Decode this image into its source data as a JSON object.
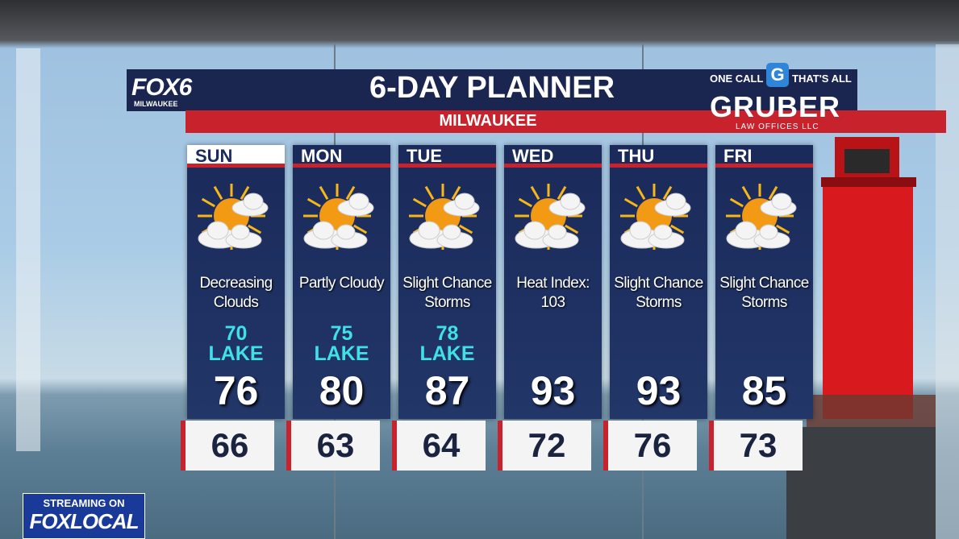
{
  "header": {
    "station": "FOX6",
    "station_city": "MILWAUKEE",
    "title": "6-DAY PLANNER",
    "subtitle": "MILWAUKEE"
  },
  "sponsor": {
    "tagline_left": "ONE CALL",
    "logo_letter": "G",
    "tagline_right": "THAT'S ALL",
    "name": "GRUBER",
    "sub": "LAW OFFICES LLC"
  },
  "days": [
    {
      "day": "SUN",
      "condition": "Decreasing Clouds",
      "lake": "70",
      "lake_label": "LAKE",
      "high": "76",
      "low": "66"
    },
    {
      "day": "MON",
      "condition": "Partly Cloudy",
      "lake": "75",
      "lake_label": "LAKE",
      "high": "80",
      "low": "63"
    },
    {
      "day": "TUE",
      "condition": "Slight Chance Storms",
      "lake": "78",
      "lake_label": "LAKE",
      "high": "87",
      "low": "64"
    },
    {
      "day": "WED",
      "condition": "Heat Index: 103",
      "high": "93",
      "low": "72"
    },
    {
      "day": "THU",
      "condition": "Slight Chance Storms",
      "high": "93",
      "low": "76"
    },
    {
      "day": "FRI",
      "condition": "Slight Chance Storms",
      "high": "85",
      "low": "73"
    }
  ],
  "streaming": {
    "line1": "STREAMING ON",
    "brand": "FOX",
    "brand2": "LOCAL"
  }
}
